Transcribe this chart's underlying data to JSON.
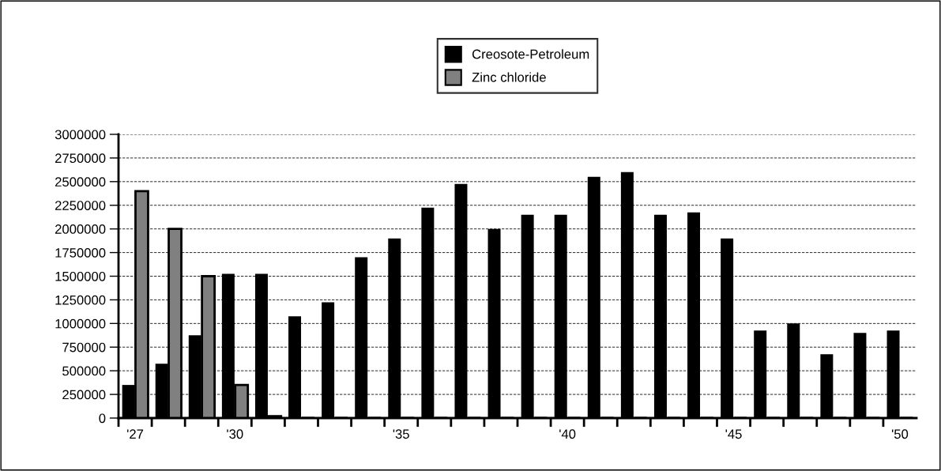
{
  "chart_data": {
    "type": "bar",
    "categories": [
      "'27",
      null,
      null,
      "'30",
      null,
      null,
      null,
      null,
      "'35",
      null,
      null,
      null,
      null,
      "'40",
      null,
      null,
      null,
      null,
      "'45",
      null,
      null,
      null,
      null,
      "'50"
    ],
    "series": [
      {
        "name": "Creosote-Petroleum",
        "color": "#000000",
        "values": [
          350000,
          575000,
          875000,
          1525000,
          1525000,
          1075000,
          1225000,
          1700000,
          1900000,
          2225000,
          2475000,
          2000000,
          2150000,
          2150000,
          2550000,
          2600000,
          2150000,
          2175000,
          1900000,
          925000,
          1000000,
          675000,
          900000,
          925000
        ]
      },
      {
        "name": "Zinc chloride",
        "color": "#808080",
        "values": [
          2400000,
          2000000,
          1500000,
          350000,
          20000,
          0,
          0,
          0,
          0,
          0,
          0,
          0,
          0,
          0,
          0,
          0,
          0,
          0,
          0,
          0,
          0,
          0,
          0,
          0
        ]
      }
    ],
    "ylim": [
      0,
      3000000
    ],
    "yticks": [
      0,
      250000,
      500000,
      750000,
      1000000,
      1250000,
      1500000,
      1750000,
      2000000,
      2250000,
      2500000,
      2750000,
      3000000
    ],
    "grid": "y",
    "legend": "top"
  }
}
